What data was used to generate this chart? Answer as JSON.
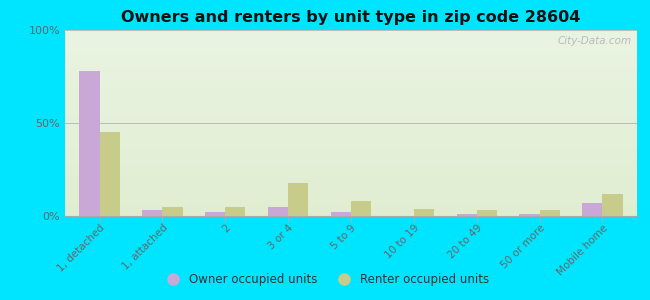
{
  "title": "Owners and renters by unit type in zip code 28604",
  "categories": [
    "1, detached",
    "1, attached",
    "2",
    "3 or 4",
    "5 to 9",
    "10 to 19",
    "20 to 49",
    "50 or more",
    "Mobile home"
  ],
  "owner_values": [
    78,
    3,
    2,
    5,
    2,
    0,
    1,
    1,
    7
  ],
  "renter_values": [
    45,
    5,
    5,
    18,
    8,
    4,
    3,
    3,
    12
  ],
  "owner_color": "#c9a8d8",
  "renter_color": "#c8cc8a",
  "outer_bg": "#00e5ff",
  "ylim": [
    0,
    100
  ],
  "yticks": [
    0,
    50,
    100
  ],
  "ytick_labels": [
    "0%",
    "50%",
    "100%"
  ],
  "bar_width": 0.32,
  "legend_owner": "Owner occupied units",
  "legend_renter": "Renter occupied units",
  "watermark": "City-Data.com"
}
